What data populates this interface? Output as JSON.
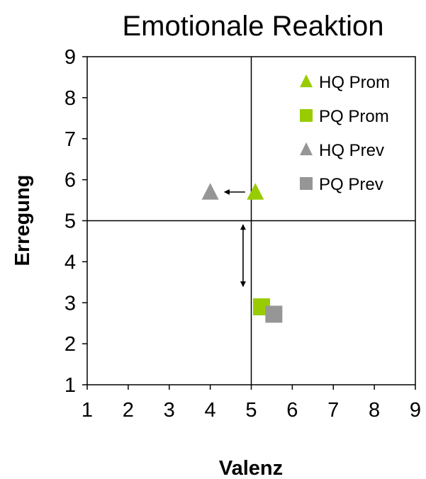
{
  "chart_data": {
    "type": "scatter",
    "title": "Emotionale Reaktion",
    "xlabel": "Valenz",
    "ylabel": "Erregung",
    "xlim": [
      1,
      9
    ],
    "ylim": [
      1,
      9
    ],
    "xticks": [
      "1",
      "2",
      "3",
      "4",
      "5",
      "6",
      "7",
      "8",
      "9"
    ],
    "yticks": [
      "1",
      "2",
      "3",
      "4",
      "5",
      "6",
      "7",
      "8",
      "9"
    ],
    "reference_lines": {
      "x": 5,
      "y": 5
    },
    "grid": false,
    "legend_position": "top-right",
    "series": [
      {
        "name": "HQ Prom",
        "marker": "triangle",
        "color": "#99cc00",
        "x": 5.1,
        "y": 5.7
      },
      {
        "name": "PQ Prom",
        "marker": "square",
        "color": "#99cc00",
        "x": 5.25,
        "y": 2.9
      },
      {
        "name": "HQ Prev",
        "marker": "triangle",
        "color": "#969696",
        "x": 4.0,
        "y": 5.7
      },
      {
        "name": "PQ Prev",
        "marker": "square",
        "color": "#969696",
        "x": 5.55,
        "y": 2.72
      }
    ],
    "annotations": [
      {
        "type": "arrow",
        "from": [
          4.85,
          5.7
        ],
        "to": [
          4.35,
          5.7
        ],
        "heads": "end"
      },
      {
        "type": "arrow",
        "from": [
          4.8,
          3.4
        ],
        "to": [
          4.8,
          4.9
        ],
        "heads": "both"
      }
    ]
  }
}
